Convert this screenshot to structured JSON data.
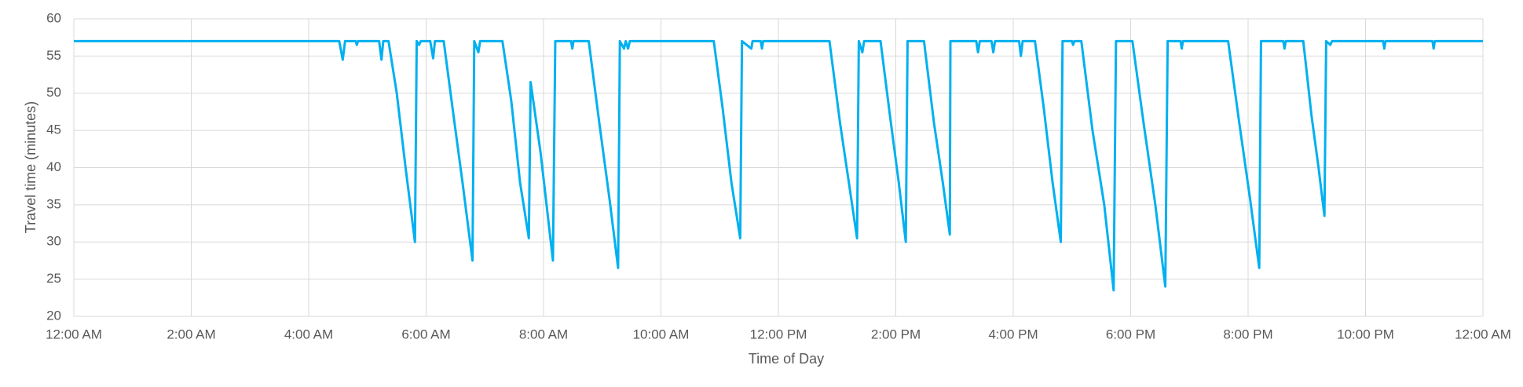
{
  "chart_data": {
    "type": "line",
    "x_label": "Time of Day",
    "y_label": "Travel time (minutes)",
    "xlim": [
      0,
      24
    ],
    "xticks": [
      {
        "value": 0,
        "label": "12:00 AM"
      },
      {
        "value": 2,
        "label": "2:00 AM"
      },
      {
        "value": 4,
        "label": "4:00 AM"
      },
      {
        "value": 6,
        "label": "6:00 AM"
      },
      {
        "value": 8,
        "label": "8:00 AM"
      },
      {
        "value": 10,
        "label": "10:00 AM"
      },
      {
        "value": 12,
        "label": "12:00 PM"
      },
      {
        "value": 14,
        "label": "2:00 PM"
      },
      {
        "value": 16,
        "label": "4:00 PM"
      },
      {
        "value": 18,
        "label": "6:00 PM"
      },
      {
        "value": 20,
        "label": "8:00 PM"
      },
      {
        "value": 22,
        "label": "10:00 PM"
      },
      {
        "value": 24,
        "label": "12:00 AM"
      }
    ],
    "ylim": [
      20,
      60
    ],
    "yticks": [
      20,
      25,
      30,
      35,
      40,
      45,
      50,
      55,
      60
    ],
    "grid": true,
    "x": [
      0,
      4.52,
      4.58,
      4.62,
      4.8,
      4.82,
      4.84,
      5.2,
      5.24,
      5.27,
      5.36,
      5.5,
      5.65,
      5.81,
      5.84,
      5.88,
      5.91,
      6.07,
      6.12,
      6.15,
      6.3,
      6.45,
      6.62,
      6.79,
      6.82,
      6.89,
      6.92,
      7.3,
      7.45,
      7.6,
      7.75,
      7.78,
      7.95,
      8.16,
      8.2,
      8.47,
      8.49,
      8.51,
      8.77,
      8.95,
      9.12,
      9.27,
      9.3,
      9.37,
      9.4,
      9.44,
      9.47,
      10.9,
      11.05,
      11.2,
      11.35,
      11.38,
      11.54,
      11.56,
      11.7,
      11.72,
      11.74,
      12.87,
      13.05,
      13.2,
      13.34,
      13.37,
      13.43,
      13.46,
      13.74,
      13.9,
      14.05,
      14.17,
      14.2,
      14.48,
      14.65,
      14.8,
      14.92,
      14.93,
      15.37,
      15.4,
      15.43,
      15.63,
      15.66,
      15.69,
      16.1,
      16.13,
      16.16,
      16.37,
      16.52,
      16.67,
      16.81,
      16.84,
      17.0,
      17.02,
      17.04,
      17.16,
      17.35,
      17.55,
      17.71,
      17.75,
      18.03,
      18.22,
      18.42,
      18.59,
      18.63,
      18.85,
      18.87,
      18.89,
      19.66,
      19.85,
      20.03,
      20.19,
      20.22,
      20.6,
      20.62,
      20.64,
      20.94,
      21.08,
      21.2,
      21.3,
      21.33,
      21.4,
      21.43,
      22.3,
      22.32,
      22.34,
      23.14,
      23.16,
      23.18,
      24
    ],
    "series": [
      {
        "name": "Travel time",
        "color": "#00b0f0",
        "values": [
          57,
          57,
          54.5,
          57,
          57,
          56.5,
          57,
          57,
          54.5,
          57,
          57,
          50,
          40,
          30,
          57,
          56.5,
          57,
          57,
          54.7,
          57,
          57,
          48,
          38,
          27.5,
          57,
          55.5,
          57,
          57,
          49,
          38,
          30.5,
          51.5,
          42,
          27.5,
          57,
          57,
          56,
          57,
          57,
          46,
          36,
          26.5,
          57,
          56,
          57,
          56,
          57,
          57,
          48,
          38,
          30.5,
          57,
          56,
          57,
          57,
          56,
          57,
          57,
          46,
          38,
          30.5,
          57,
          55.5,
          57,
          57,
          47,
          38,
          30,
          57,
          57,
          46,
          38,
          31,
          57,
          57,
          55.5,
          57,
          57,
          55.5,
          57,
          57,
          55,
          57,
          57,
          48,
          38,
          30,
          57,
          57,
          56.5,
          57,
          57,
          45,
          35,
          23.5,
          57,
          57,
          46,
          35,
          24,
          57,
          57,
          56,
          57,
          57,
          46,
          36,
          26.5,
          57,
          57,
          56,
          57,
          57,
          47,
          40,
          33.5,
          57,
          56.5,
          57,
          57,
          56,
          57,
          57,
          56,
          57,
          57
        ]
      }
    ]
  }
}
